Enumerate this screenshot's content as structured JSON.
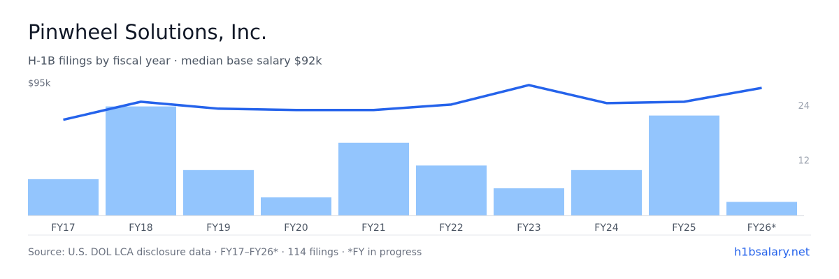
{
  "chart_data": {
    "type": "bar",
    "title": "Pinwheel Solutions, Inc.",
    "subtitle": "H-1B filings by fiscal year · median base salary $92k",
    "categories": [
      "FY17",
      "FY18",
      "FY19",
      "FY20",
      "FY21",
      "FY22",
      "FY23",
      "FY24",
      "FY25",
      "FY26*"
    ],
    "series": [
      {
        "type": "bar",
        "axis": "y2",
        "color": "#93c5fd",
        "values": [
          8,
          24,
          10,
          4,
          16,
          11,
          6,
          10,
          22,
          3
        ]
      },
      {
        "type": "line",
        "color": "#2563eb",
        "values": [
          69,
          82,
          77,
          76,
          76,
          80,
          94,
          81,
          82,
          92
        ]
      }
    ],
    "ylim": [
      0,
      95
    ],
    "yticks": [
      {
        "value": 95,
        "label": "$95k"
      }
    ],
    "y2lim": [
      0,
      29
    ],
    "y2ticks": [
      12,
      24
    ],
    "source": "Source: U.S. DOL LCA disclosure data · FY17–FY26* · 114 filings · *FY in progress",
    "brand": "h1bsalary.net"
  }
}
